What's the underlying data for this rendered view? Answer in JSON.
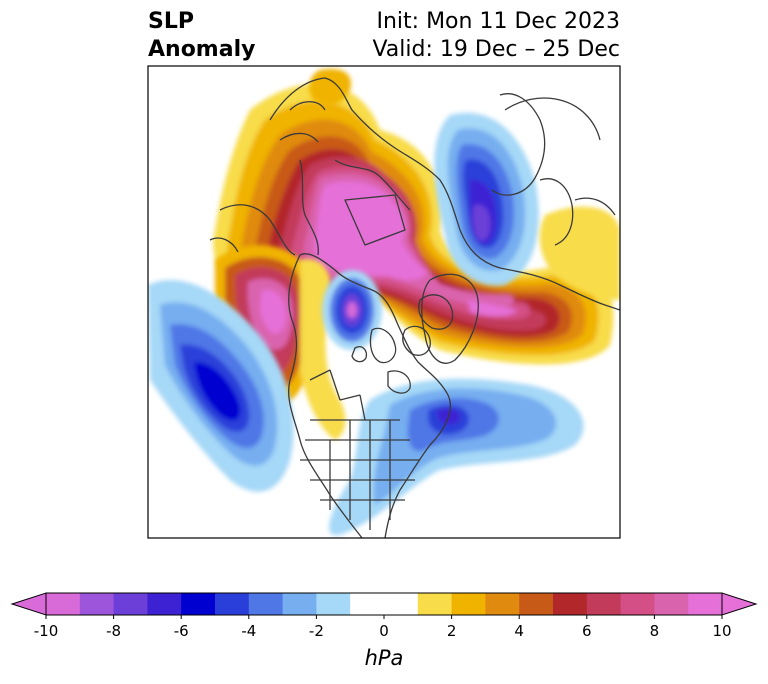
{
  "title": {
    "left_line1": "SLP",
    "left_line2": "Anomaly",
    "init": "Init: Mon 11 Dec 2023",
    "valid": "Valid: 19 Dec – 25 Dec"
  },
  "colorbar": {
    "units": "hPa",
    "tick_labels": [
      "-10",
      "-8",
      "-6",
      "-4",
      "-2",
      "0",
      "2",
      "4",
      "6",
      "8",
      "10"
    ],
    "level_colors": [
      "#d96bd9",
      "#9d55dc",
      "#6b3fd8",
      "#3c22d3",
      "#0000d1",
      "#2a3fd9",
      "#4f77e6",
      "#76aef0",
      "#a6d8f7",
      "#ffffff",
      "#ffffff",
      "#f8dc4a",
      "#f0b300",
      "#e08b10",
      "#c85a18",
      "#b2282a",
      "#c23b5a",
      "#d34f85",
      "#da63ae",
      "#e570d8"
    ],
    "extend": "both"
  },
  "colors": {
    "coastline": "#3a3a3a",
    "frame": "#000000"
  }
}
